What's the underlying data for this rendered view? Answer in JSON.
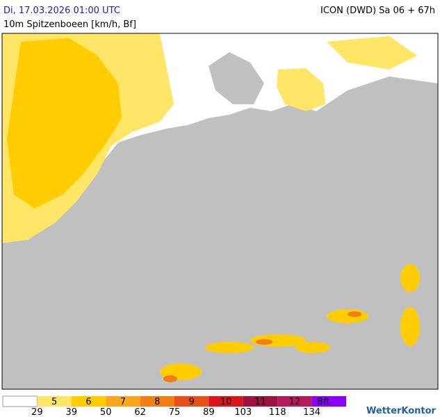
{
  "header": {
    "valid_time": "Di, 17.03.2026 01:00 UTC",
    "model": "ICON (DWD) Sa 06 + 67h",
    "parameter": "10m Spitzenboeen [km/h, Bf]"
  },
  "legend": {
    "bins": [
      {
        "color": "#ffffff"
      },
      {
        "label": "5",
        "color": "#ffe566"
      },
      {
        "label": "6",
        "color": "#ffcc00"
      },
      {
        "label": "7",
        "color": "#f9a81e"
      },
      {
        "label": "8",
        "color": "#f27e14"
      },
      {
        "label": "9",
        "color": "#e8501a"
      },
      {
        "label": "10",
        "color": "#d8161c"
      },
      {
        "label": "11",
        "color": "#9c1240"
      },
      {
        "label": "12",
        "color": "#b41a5c"
      },
      {
        "label": "Bft",
        "color": "#8c00ff"
      }
    ],
    "thresholds": [
      "29",
      "39",
      "50",
      "62",
      "75",
      "89",
      "103",
      "118",
      "134"
    ]
  },
  "brand": "WetterKontor"
}
